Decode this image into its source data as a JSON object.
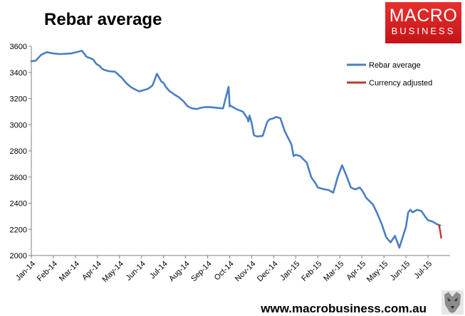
{
  "header": {
    "title": "Rebar average"
  },
  "logo": {
    "line1": "MACRO",
    "line2": "BUSINESS",
    "bg": "#d21f22"
  },
  "footer": {
    "url": "www.macrobusiness.com.au"
  },
  "chart_data": {
    "type": "line",
    "title": "Rebar average",
    "ylim": [
      2000,
      3600
    ],
    "yticks": [
      2000,
      2200,
      2400,
      2600,
      2800,
      3000,
      3200,
      3400,
      3600
    ],
    "ytick_labels": [
      "2000",
      "2200",
      "2400",
      "2600",
      "2800",
      "3000",
      "3200",
      "3400",
      "3600"
    ],
    "xtick_labels": [
      "Jan-14",
      "Feb-14",
      "Mar-14",
      "Apr-14",
      "May-14",
      "Jun-14",
      "Jul-14",
      "Aug-14",
      "Sep-14",
      "Oct-14",
      "Nov-14",
      "Dec-14",
      "Jan-15",
      "Feb-15",
      "Mar-15",
      "Apr-15",
      "May-15",
      "Jun-15",
      "Jul-15"
    ],
    "grid": false,
    "legend_position": "top-right",
    "series": [
      {
        "name": "Rebar average",
        "color": "#4a7fc1",
        "x": [
          0,
          0.2,
          0.45,
          0.7,
          1,
          1.3,
          1.8,
          2.3,
          2.5,
          2.8,
          2.95,
          3.1,
          3.2,
          3.3,
          3.5,
          3.8,
          4.1,
          4.3,
          4.5,
          4.7,
          4.9,
          5.1,
          5.3,
          5.5,
          5.7,
          5.9,
          6.0,
          6.1,
          6.25,
          6.5,
          6.7,
          6.9,
          7.1,
          7.3,
          7.5,
          7.7,
          7.9,
          8.1,
          8.4,
          8.7,
          8.95,
          9.0,
          9.05,
          9.3,
          9.6,
          9.8,
          9.85,
          9.9,
          10.0,
          10.1,
          10.25,
          10.5,
          10.7,
          10.8,
          11.0,
          11.1,
          11.3,
          11.5,
          11.8,
          11.9,
          12.0,
          12.2,
          12.5,
          12.7,
          12.9,
          13.0,
          13.2,
          13.5,
          13.7,
          13.9,
          14.1,
          14.3,
          14.5,
          14.7,
          14.9,
          15.0,
          15.2,
          15.5,
          15.7,
          15.9,
          16.1,
          16.3,
          16.5,
          16.7,
          17.0,
          17.1,
          17.2,
          17.3,
          17.5,
          17.7,
          17.9,
          18.0,
          18.2,
          18.4,
          18.55
        ],
        "y": [
          3485,
          3490,
          3535,
          3555,
          3545,
          3540,
          3545,
          3565,
          3520,
          3500,
          3465,
          3450,
          3430,
          3420,
          3410,
          3405,
          3360,
          3320,
          3290,
          3270,
          3255,
          3265,
          3275,
          3300,
          3390,
          3330,
          3320,
          3290,
          3260,
          3230,
          3210,
          3180,
          3140,
          3125,
          3120,
          3130,
          3135,
          3135,
          3130,
          3125,
          3290,
          3140,
          3145,
          3120,
          3100,
          3050,
          3025,
          3070,
          3010,
          2920,
          2910,
          2915,
          3020,
          3040,
          3050,
          3060,
          3050,
          2950,
          2850,
          2760,
          2770,
          2760,
          2710,
          2600,
          2550,
          2520,
          2510,
          2500,
          2480,
          2600,
          2690,
          2610,
          2520,
          2505,
          2520,
          2500,
          2440,
          2390,
          2320,
          2240,
          2140,
          2100,
          2150,
          2060,
          2220,
          2330,
          2350,
          2330,
          2350,
          2340,
          2290,
          2270,
          2260,
          2240,
          2230
        ]
      },
      {
        "name": "Currency adjusted",
        "color": "#c0392b",
        "x": [
          18.5,
          18.55,
          18.6
        ],
        "y": [
          2230,
          2190,
          2135
        ]
      }
    ]
  }
}
